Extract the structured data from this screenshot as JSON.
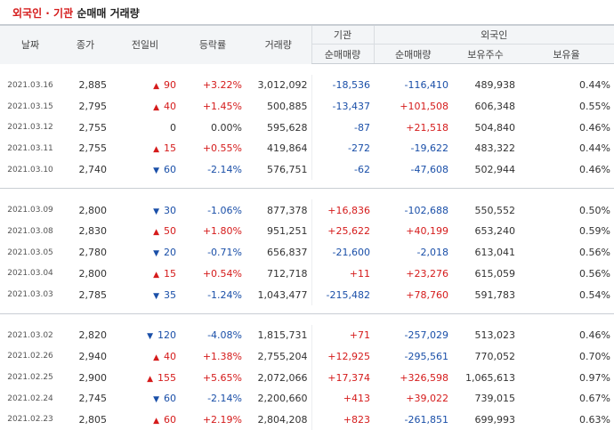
{
  "title": {
    "part1": "외국인 · 기관",
    "part2": "순매매 거래량"
  },
  "headers": {
    "date": "날짜",
    "close": "종가",
    "change": "전일비",
    "rate": "등락률",
    "volume": "거래량",
    "institution": "기관",
    "foreign": "외국인",
    "inst_net": "순매매량",
    "frgn_net": "순매매량",
    "frgn_hold": "보유주수",
    "frgn_ratio": "보유율"
  },
  "groups": [
    {
      "rows": [
        {
          "date": "2021.03.16",
          "close": "2,885",
          "dir": "up",
          "change": "90",
          "rate": "+3.22%",
          "volume": "3,012,092",
          "inst": "-18,536",
          "frgn": "-116,410",
          "hold": "489,938",
          "ratio": "0.44%"
        },
        {
          "date": "2021.03.15",
          "close": "2,795",
          "dir": "up",
          "change": "40",
          "rate": "+1.45%",
          "volume": "500,885",
          "inst": "-13,437",
          "frgn": "+101,508",
          "hold": "606,348",
          "ratio": "0.55%"
        },
        {
          "date": "2021.03.12",
          "close": "2,755",
          "dir": "none",
          "change": "0",
          "rate": "0.00%",
          "volume": "595,628",
          "inst": "-87",
          "frgn": "+21,518",
          "hold": "504,840",
          "ratio": "0.46%"
        },
        {
          "date": "2021.03.11",
          "close": "2,755",
          "dir": "up",
          "change": "15",
          "rate": "+0.55%",
          "volume": "419,864",
          "inst": "-272",
          "frgn": "-19,622",
          "hold": "483,322",
          "ratio": "0.44%"
        },
        {
          "date": "2021.03.10",
          "close": "2,740",
          "dir": "down",
          "change": "60",
          "rate": "-2.14%",
          "volume": "576,751",
          "inst": "-62",
          "frgn": "-47,608",
          "hold": "502,944",
          "ratio": "0.46%"
        }
      ]
    },
    {
      "rows": [
        {
          "date": "2021.03.09",
          "close": "2,800",
          "dir": "down",
          "change": "30",
          "rate": "-1.06%",
          "volume": "877,378",
          "inst": "+16,836",
          "frgn": "-102,688",
          "hold": "550,552",
          "ratio": "0.50%"
        },
        {
          "date": "2021.03.08",
          "close": "2,830",
          "dir": "up",
          "change": "50",
          "rate": "+1.80%",
          "volume": "951,251",
          "inst": "+25,622",
          "frgn": "+40,199",
          "hold": "653,240",
          "ratio": "0.59%"
        },
        {
          "date": "2021.03.05",
          "close": "2,780",
          "dir": "down",
          "change": "20",
          "rate": "-0.71%",
          "volume": "656,837",
          "inst": "-21,600",
          "frgn": "-2,018",
          "hold": "613,041",
          "ratio": "0.56%"
        },
        {
          "date": "2021.03.04",
          "close": "2,800",
          "dir": "up",
          "change": "15",
          "rate": "+0.54%",
          "volume": "712,718",
          "inst": "+11",
          "frgn": "+23,276",
          "hold": "615,059",
          "ratio": "0.56%"
        },
        {
          "date": "2021.03.03",
          "close": "2,785",
          "dir": "down",
          "change": "35",
          "rate": "-1.24%",
          "volume": "1,043,477",
          "inst": "-215,482",
          "frgn": "+78,760",
          "hold": "591,783",
          "ratio": "0.54%"
        }
      ]
    },
    {
      "rows": [
        {
          "date": "2021.03.02",
          "close": "2,820",
          "dir": "down",
          "change": "120",
          "rate": "-4.08%",
          "volume": "1,815,731",
          "inst": "+71",
          "frgn": "-257,029",
          "hold": "513,023",
          "ratio": "0.46%"
        },
        {
          "date": "2021.02.26",
          "close": "2,940",
          "dir": "up",
          "change": "40",
          "rate": "+1.38%",
          "volume": "2,755,204",
          "inst": "+12,925",
          "frgn": "-295,561",
          "hold": "770,052",
          "ratio": "0.70%"
        },
        {
          "date": "2021.02.25",
          "close": "2,900",
          "dir": "up",
          "change": "155",
          "rate": "+5.65%",
          "volume": "2,072,066",
          "inst": "+17,374",
          "frgn": "+326,598",
          "hold": "1,065,613",
          "ratio": "0.97%"
        },
        {
          "date": "2021.02.24",
          "close": "2,745",
          "dir": "down",
          "change": "60",
          "rate": "-2.14%",
          "volume": "2,200,660",
          "inst": "+413",
          "frgn": "+39,022",
          "hold": "739,015",
          "ratio": "0.67%"
        },
        {
          "date": "2021.02.23",
          "close": "2,805",
          "dir": "up",
          "change": "60",
          "rate": "+2.19%",
          "volume": "2,804,208",
          "inst": "+823",
          "frgn": "-261,851",
          "hold": "699,993",
          "ratio": "0.63%"
        }
      ]
    }
  ],
  "colors": {
    "up": "#d51b1b",
    "down": "#1a4fa8",
    "header_bg": "#f3f5f7"
  },
  "icons": {
    "up": "triangle-up-icon",
    "down": "triangle-down-icon"
  }
}
